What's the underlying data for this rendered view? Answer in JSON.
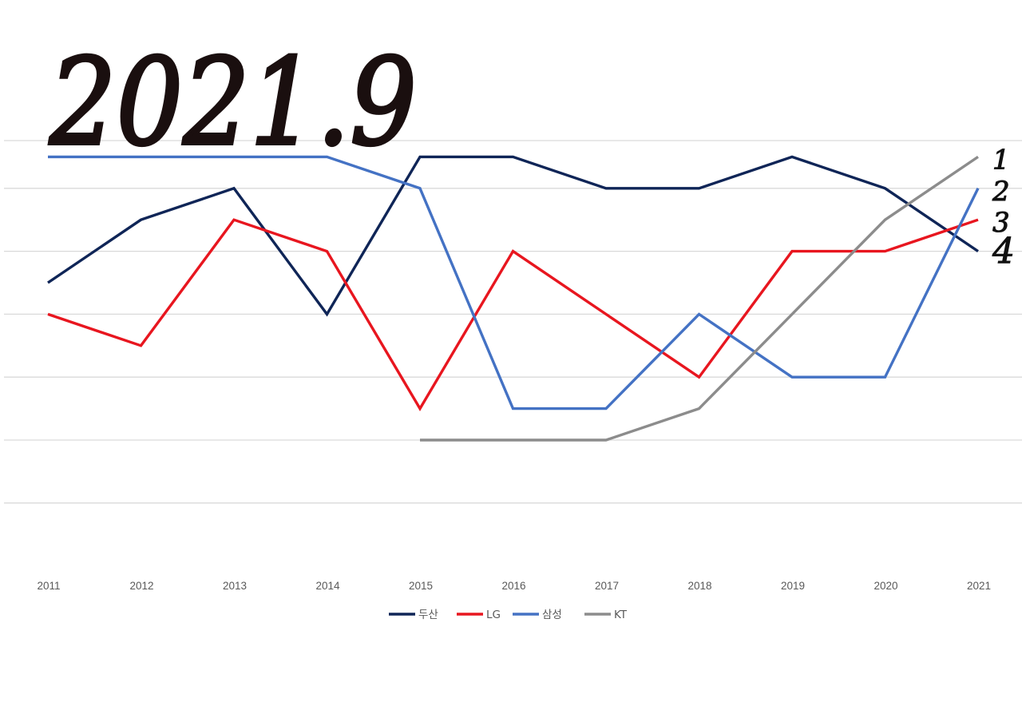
{
  "annotation": {
    "title": "2021.9",
    "rank_labels": [
      {
        "text": "1",
        "year": 2021,
        "rank": 1
      },
      {
        "text": "2",
        "year": 2021,
        "rank": 2
      },
      {
        "text": "3",
        "year": 2021,
        "rank": 3
      },
      {
        "text": "4",
        "year": 2021,
        "rank": 4
      }
    ]
  },
  "chart_data": {
    "type": "line",
    "title": "",
    "xlabel": "",
    "ylabel": "",
    "x": [
      "2011",
      "2012",
      "2013",
      "2014",
      "2015",
      "2016",
      "2017",
      "2018",
      "2019",
      "2020",
      "2021"
    ],
    "y_reversed": true,
    "ylim": [
      1,
      11
    ],
    "grid": true,
    "legend": "bottom",
    "series": [
      {
        "name": "두산",
        "color": "#0f2557",
        "values": [
          5,
          3,
          2,
          6,
          1,
          1,
          2,
          2,
          1,
          2,
          4
        ]
      },
      {
        "name": "LG",
        "color": "#e8161f",
        "values": [
          6,
          7,
          3,
          4,
          9,
          4,
          6,
          8,
          4,
          4,
          3
        ]
      },
      {
        "name": "삼성",
        "color": "#4472c4",
        "values": [
          1,
          1,
          1,
          1,
          2,
          9,
          9,
          6,
          8,
          8,
          2
        ]
      },
      {
        "name": "KT",
        "color": "#8c8c8c",
        "values": [
          null,
          null,
          null,
          null,
          10,
          10,
          10,
          9,
          6,
          3,
          1
        ]
      }
    ]
  }
}
